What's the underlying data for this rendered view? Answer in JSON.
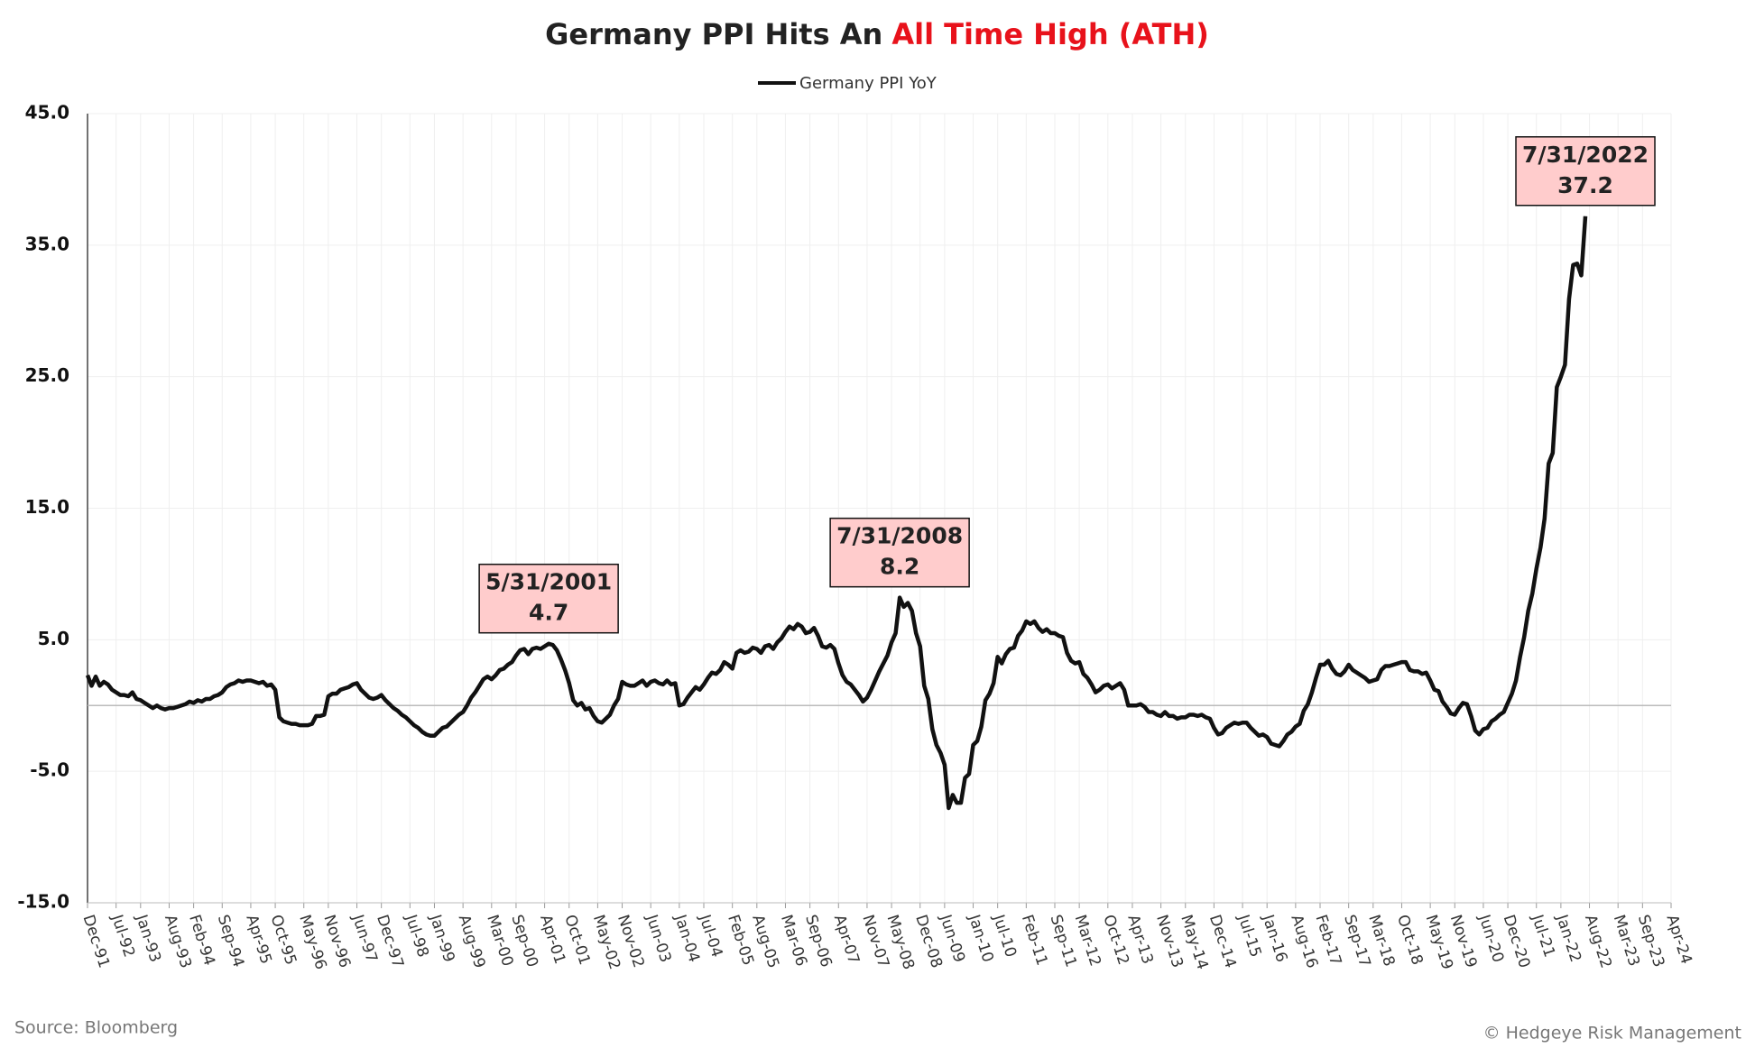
{
  "chart_data": {
    "type": "line",
    "title": [
      "Germany PPI Hits An",
      "All Time High (ATH)"
    ],
    "title_highlight_color": "#e8121b",
    "source": "Source: Bloomberg",
    "credit": "© Hedgeye Risk Management",
    "grid": true,
    "negative_tick_color": "#e8121b",
    "ylim": [
      -15,
      45
    ],
    "yticks": [
      {
        "value": -15,
        "label": "-15.0"
      },
      {
        "value": -5,
        "label": "-5.0"
      },
      {
        "value": 5,
        "label": "5.0"
      },
      {
        "value": 15,
        "label": "15.0"
      },
      {
        "value": 25,
        "label": "25.0"
      },
      {
        "value": 35,
        "label": "35.0"
      },
      {
        "value": 45,
        "label": "45.0"
      }
    ],
    "categories": [
      "Dec-91",
      null,
      null,
      null,
      null,
      null,
      null,
      "Jul-92",
      null,
      null,
      null,
      null,
      null,
      "Jan-93",
      null,
      null,
      null,
      null,
      null,
      null,
      "Aug-93",
      null,
      null,
      null,
      null,
      null,
      "Feb-94",
      null,
      null,
      null,
      null,
      null,
      null,
      "Sep-94",
      null,
      null,
      null,
      null,
      null,
      null,
      "Apr-95",
      null,
      null,
      null,
      null,
      null,
      "Oct-95",
      null,
      null,
      null,
      null,
      null,
      null,
      "May-96",
      null,
      null,
      null,
      null,
      null,
      "Nov-96",
      null,
      null,
      null,
      null,
      null,
      null,
      "Jun-97",
      null,
      null,
      null,
      null,
      null,
      "Dec-97",
      null,
      null,
      null,
      null,
      null,
      null,
      "Jul-98",
      null,
      null,
      null,
      null,
      null,
      "Jan-99",
      null,
      null,
      null,
      null,
      null,
      null,
      "Aug-99",
      null,
      null,
      null,
      null,
      null,
      null,
      "Mar-00",
      null,
      null,
      null,
      null,
      null,
      "Sep-00",
      null,
      null,
      null,
      null,
      null,
      null,
      "Apr-01",
      null,
      null,
      null,
      null,
      null,
      "Oct-01",
      null,
      null,
      null,
      null,
      null,
      null,
      "May-02",
      null,
      null,
      null,
      null,
      null,
      "Nov-02",
      null,
      null,
      null,
      null,
      null,
      null,
      "Jun-03",
      null,
      null,
      null,
      null,
      null,
      null,
      "Jan-04",
      null,
      null,
      null,
      null,
      null,
      "Jul-04",
      null,
      null,
      null,
      null,
      null,
      null,
      "Feb-05",
      null,
      null,
      null,
      null,
      null,
      "Aug-05",
      null,
      null,
      null,
      null,
      null,
      null,
      "Mar-06",
      null,
      null,
      null,
      null,
      null,
      "Sep-06",
      null,
      null,
      null,
      null,
      null,
      null,
      "Apr-07",
      null,
      null,
      null,
      null,
      null,
      null,
      "Nov-07",
      null,
      null,
      null,
      null,
      null,
      "May-08",
      null,
      null,
      null,
      null,
      null,
      null,
      "Dec-08",
      null,
      null,
      null,
      null,
      null,
      "Jun-09",
      null,
      null,
      null,
      null,
      null,
      null,
      "Jan-10",
      null,
      null,
      null,
      null,
      null,
      "Jul-10",
      null,
      null,
      null,
      null,
      null,
      null,
      "Feb-11",
      null,
      null,
      null,
      null,
      null,
      null,
      "Sep-11",
      null,
      null,
      null,
      null,
      null,
      "Mar-12",
      null,
      null,
      null,
      null,
      null,
      null,
      "Oct-12",
      null,
      null,
      null,
      null,
      null,
      "Apr-13",
      null,
      null,
      null,
      null,
      null,
      null,
      "Nov-13",
      null,
      null,
      null,
      null,
      null,
      "May-14",
      null,
      null,
      null,
      null,
      null,
      null,
      "Dec-14",
      null,
      null,
      null,
      null,
      null,
      null,
      "Jul-15",
      null,
      null,
      null,
      null,
      null,
      "Jan-16",
      null,
      null,
      null,
      null,
      null,
      null,
      "Aug-16",
      null,
      null,
      null,
      null,
      null,
      "Feb-17",
      null,
      null,
      null,
      null,
      null,
      null,
      "Sep-17",
      null,
      null,
      null,
      null,
      null,
      "Mar-18",
      null,
      null,
      null,
      null,
      null,
      null,
      "Oct-18",
      null,
      null,
      null,
      null,
      null,
      null,
      "May-19",
      null,
      null,
      null,
      null,
      null,
      "Nov-19",
      null,
      null,
      null,
      null,
      null,
      null,
      "Jun-20",
      null,
      null,
      null,
      null,
      null,
      "Dec-20",
      null,
      null,
      null,
      null,
      null,
      null,
      "Jul-21",
      null,
      null,
      null,
      null,
      null,
      "Jan-22",
      null,
      null,
      null,
      null,
      null,
      null,
      "Aug-22",
      null,
      null,
      null,
      null,
      null,
      null,
      "Mar-23",
      null,
      null,
      null,
      null,
      null,
      "Sep-23",
      null,
      null,
      null,
      null,
      null,
      null,
      "Apr-24"
    ],
    "series": [
      {
        "name": "Germany PPI YoY",
        "color": "#111111",
        "values": [
          2.3,
          1.5,
          2.2,
          1.5,
          1.8,
          1.6,
          1.2,
          1.0,
          0.8,
          0.8,
          0.7,
          1.0,
          0.5,
          0.4,
          0.2,
          0.0,
          -0.2,
          0.0,
          -0.2,
          -0.3,
          -0.2,
          -0.2,
          -0.1,
          0.0,
          0.1,
          0.3,
          0.2,
          0.4,
          0.3,
          0.5,
          0.5,
          0.7,
          0.8,
          1.0,
          1.4,
          1.6,
          1.7,
          1.9,
          1.8,
          1.9,
          1.9,
          1.8,
          1.7,
          1.8,
          1.5,
          1.6,
          1.2,
          -0.9,
          -1.2,
          -1.3,
          -1.4,
          -1.4,
          -1.5,
          -1.5,
          -1.5,
          -1.4,
          -0.8,
          -0.8,
          -0.7,
          0.7,
          0.9,
          0.9,
          1.2,
          1.3,
          1.4,
          1.6,
          1.7,
          1.2,
          0.9,
          0.6,
          0.5,
          0.6,
          0.8,
          0.4,
          0.1,
          -0.2,
          -0.4,
          -0.7,
          -0.9,
          -1.2,
          -1.5,
          -1.7,
          -2.0,
          -2.2,
          -2.3,
          -2.3,
          -2.0,
          -1.7,
          -1.6,
          -1.3,
          -1.0,
          -0.7,
          -0.5,
          0.0,
          0.6,
          1.0,
          1.5,
          2.0,
          2.2,
          2.0,
          2.3,
          2.7,
          2.8,
          3.1,
          3.3,
          3.8,
          4.2,
          4.3,
          3.9,
          4.3,
          4.4,
          4.3,
          4.5,
          4.7,
          4.6,
          4.2,
          3.5,
          2.7,
          1.7,
          0.4,
          0.0,
          0.2,
          -0.3,
          -0.2,
          -0.8,
          -1.2,
          -1.3,
          -1.0,
          -0.7,
          0.0,
          0.5,
          1.8,
          1.6,
          1.5,
          1.5,
          1.7,
          1.9,
          1.5,
          1.8,
          1.9,
          1.7,
          1.6,
          1.9,
          1.6,
          1.7,
          0.0,
          0.1,
          0.6,
          1.0,
          1.4,
          1.2,
          1.6,
          2.1,
          2.5,
          2.4,
          2.7,
          3.3,
          3.1,
          2.8,
          4.0,
          4.2,
          4.0,
          4.1,
          4.4,
          4.3,
          4.0,
          4.5,
          4.6,
          4.3,
          4.8,
          5.1,
          5.6,
          6.0,
          5.8,
          6.2,
          6.0,
          5.5,
          5.6,
          5.9,
          5.3,
          4.5,
          4.4,
          4.6,
          4.3,
          3.2,
          2.3,
          1.8,
          1.6,
          1.2,
          0.8,
          0.3,
          0.6,
          1.2,
          1.9,
          2.6,
          3.2,
          3.8,
          4.8,
          5.5,
          8.2,
          7.5,
          7.8,
          7.2,
          5.5,
          4.5,
          1.5,
          0.5,
          -1.8,
          -3.0,
          -3.6,
          -4.5,
          -7.8,
          -6.8,
          -7.4,
          -7.4,
          -5.5,
          -5.2,
          -3.0,
          -2.7,
          -1.6,
          0.4,
          0.9,
          1.7,
          3.7,
          3.2,
          3.9,
          4.3,
          4.4,
          5.3,
          5.7,
          6.4,
          6.2,
          6.4,
          5.9,
          5.6,
          5.8,
          5.5,
          5.5,
          5.3,
          5.2,
          4.0,
          3.4,
          3.2,
          3.3,
          2.4,
          2.1,
          1.6,
          1.0,
          1.2,
          1.5,
          1.6,
          1.3,
          1.5,
          1.7,
          1.2,
          0.0,
          0.0,
          0.0,
          0.1,
          -0.1,
          -0.5,
          -0.5,
          -0.7,
          -0.8,
          -0.5,
          -0.8,
          -0.8,
          -1.0,
          -0.9,
          -0.9,
          -0.7,
          -0.7,
          -0.8,
          -0.7,
          -0.9,
          -1.0,
          -1.7,
          -2.2,
          -2.1,
          -1.7,
          -1.5,
          -1.3,
          -1.4,
          -1.3,
          -1.3,
          -1.7,
          -2.0,
          -2.3,
          -2.2,
          -2.4,
          -2.9,
          -3.0,
          -3.1,
          -2.7,
          -2.2,
          -2.0,
          -1.6,
          -1.4,
          -0.4,
          0.1,
          1.0,
          2.1,
          3.1,
          3.1,
          3.4,
          2.8,
          2.4,
          2.3,
          2.6,
          3.1,
          2.7,
          2.5,
          2.3,
          2.1,
          1.8,
          1.9,
          2.0,
          2.7,
          3.0,
          3.0,
          3.1,
          3.2,
          3.3,
          3.3,
          2.7,
          2.6,
          2.6,
          2.4,
          2.5,
          1.9,
          1.2,
          1.1,
          0.3,
          -0.1,
          -0.6,
          -0.7,
          -0.2,
          0.2,
          0.1,
          -0.8,
          -1.9,
          -2.2,
          -1.8,
          -1.7,
          -1.2,
          -1.0,
          -0.7,
          -0.5,
          0.2,
          0.9,
          1.9,
          3.7,
          5.2,
          7.2,
          8.5,
          10.4,
          12.0,
          14.2,
          18.4,
          19.2,
          24.2,
          25.0,
          25.9,
          30.9,
          33.5,
          33.6,
          32.7,
          37.2,
          null,
          null,
          null,
          null,
          null,
          null,
          null,
          null,
          null,
          null,
          null,
          null,
          null,
          null,
          null,
          null,
          null,
          null,
          null,
          null,
          null
        ]
      }
    ],
    "annotations": [
      {
        "label": "5/31/2001",
        "value": 4.7
      },
      {
        "label": "7/31/2008",
        "value": 8.2
      },
      {
        "label": "7/31/2022",
        "value": 37.2
      }
    ],
    "annotation_fill": "#ffcccc"
  }
}
